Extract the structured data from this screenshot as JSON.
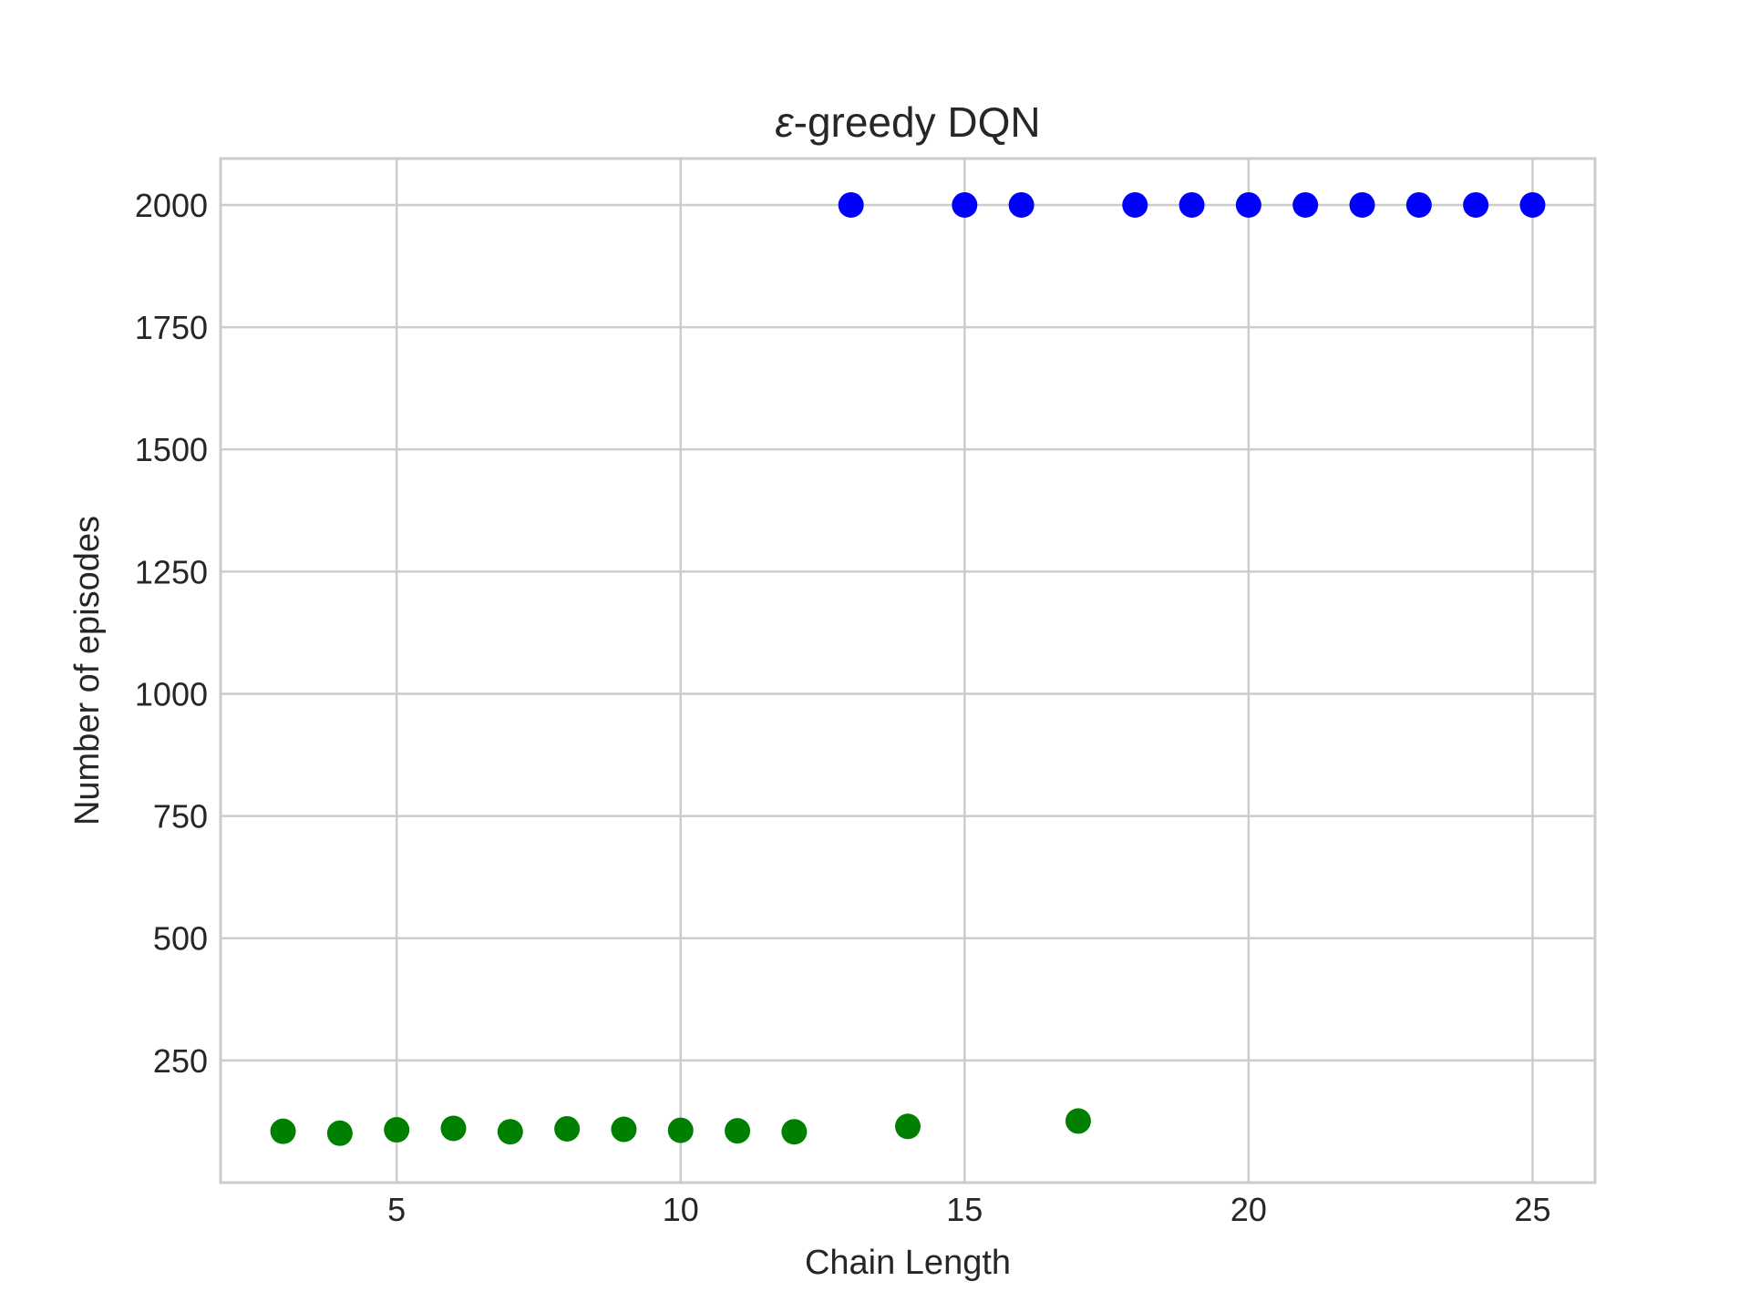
{
  "chart_data": {
    "type": "scatter",
    "title_symbol": "ε",
    "title_rest": "-greedy DQN",
    "xlabel": "Chain Length",
    "ylabel": "Number of episodes",
    "xlim": [
      1.9,
      26.1
    ],
    "ylim": [
      0,
      2095
    ],
    "xticks": [
      5,
      10,
      15,
      20,
      25
    ],
    "yticks": [
      250,
      500,
      750,
      1000,
      1250,
      1500,
      1750,
      2000
    ],
    "grid": true,
    "legend": "none",
    "colors": {
      "grid": "#cccccc",
      "frame": "#cccccc",
      "text": "#262626"
    },
    "series": [
      {
        "color": "#0000ff",
        "points": [
          [
            13,
            2000
          ],
          [
            15,
            2000
          ],
          [
            16,
            2000
          ],
          [
            18,
            2000
          ],
          [
            19,
            2000
          ],
          [
            20,
            2000
          ],
          [
            21,
            2000
          ],
          [
            22,
            2000
          ],
          [
            23,
            2000
          ],
          [
            24,
            2000
          ],
          [
            25,
            2000
          ]
        ]
      },
      {
        "color": "#008000",
        "points": [
          [
            3,
            105
          ],
          [
            4,
            101
          ],
          [
            5,
            108
          ],
          [
            6,
            111
          ],
          [
            7,
            104
          ],
          [
            8,
            110
          ],
          [
            9,
            109
          ],
          [
            10,
            107
          ],
          [
            11,
            106
          ],
          [
            12,
            104
          ],
          [
            14,
            115
          ],
          [
            17,
            126
          ]
        ]
      }
    ]
  }
}
